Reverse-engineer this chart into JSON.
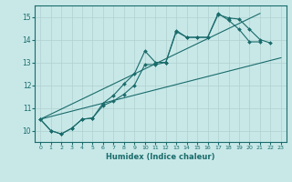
{
  "xlabel": "Humidex (Indice chaleur)",
  "ylabel": "",
  "bg_color": "#c8e8e8",
  "line_color": "#1a6b6b",
  "grid_color": "#b0d0d0",
  "xlim": [
    -0.5,
    23.5
  ],
  "ylim": [
    9.5,
    15.5
  ],
  "xticks": [
    0,
    1,
    2,
    3,
    4,
    5,
    6,
    7,
    8,
    9,
    10,
    11,
    12,
    13,
    14,
    15,
    16,
    17,
    18,
    19,
    20,
    21,
    22,
    23
  ],
  "yticks": [
    10,
    11,
    12,
    13,
    14,
    15
  ],
  "lines": [
    {
      "x": [
        0,
        1,
        2,
        3,
        4,
        5,
        6,
        7,
        8,
        9,
        10,
        11,
        12,
        13,
        14,
        15,
        16,
        17,
        18,
        19,
        20,
        21
      ],
      "y": [
        10.5,
        10.0,
        9.85,
        10.1,
        10.5,
        10.55,
        11.2,
        11.55,
        12.05,
        12.5,
        13.5,
        13.0,
        13.0,
        14.4,
        14.1,
        14.1,
        14.1,
        15.15,
        14.85,
        14.45,
        13.9,
        13.9
      ],
      "has_markers": true
    },
    {
      "x": [
        0,
        1,
        2,
        3,
        4,
        5,
        6,
        7,
        8,
        9,
        10,
        11,
        12,
        13,
        14,
        15,
        16,
        17,
        18,
        19,
        20,
        21,
        22
      ],
      "y": [
        10.5,
        10.0,
        9.85,
        10.1,
        10.5,
        10.55,
        11.1,
        11.3,
        11.6,
        12.0,
        12.9,
        12.9,
        13.0,
        14.35,
        14.1,
        14.1,
        14.1,
        15.1,
        14.95,
        14.9,
        14.45,
        14.0,
        13.85
      ],
      "has_markers": true
    },
    {
      "x": [
        0,
        23
      ],
      "y": [
        10.5,
        13.2
      ],
      "has_markers": false
    },
    {
      "x": [
        0,
        21
      ],
      "y": [
        10.5,
        15.15
      ],
      "has_markers": false
    }
  ]
}
